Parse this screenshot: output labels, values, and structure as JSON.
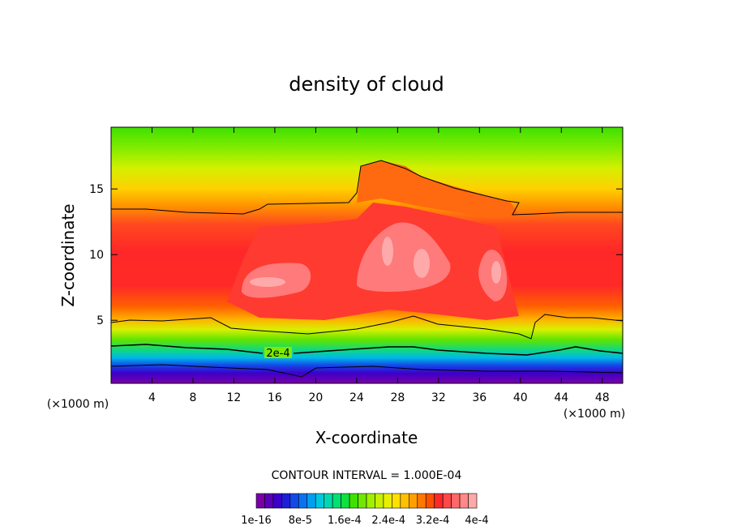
{
  "chart_data": {
    "type": "heatmap",
    "title": "density of cloud",
    "xlabel": "X-coordinate",
    "ylabel": "Z-coordinate",
    "x_unit": "(×1000 m)",
    "xlim": [
      0,
      50
    ],
    "ylim": [
      0.2,
      19.7
    ],
    "x_ticks": [
      4,
      8,
      12,
      16,
      20,
      24,
      28,
      32,
      36,
      40,
      44,
      48
    ],
    "y_ticks": [
      5,
      10,
      15
    ],
    "contour_interval_label": "CONTOUR INTERVAL = 1.000E-04",
    "contour_label": "2e-4",
    "colorbar": {
      "tick_labels": [
        "1e-16",
        "8e-5",
        "1.6e-4",
        "2.4e-4",
        "3.2e-4",
        "4e-4"
      ],
      "colors": [
        "#7a00a8",
        "#5a00b8",
        "#3c00c8",
        "#1e1ed8",
        "#1448e8",
        "#0a72f0",
        "#00a0f0",
        "#00c8e0",
        "#00d8b0",
        "#00e070",
        "#10e040",
        "#40e000",
        "#70e800",
        "#a0f000",
        "#c8f000",
        "#e8f000",
        "#ffe000",
        "#ffc000",
        "#ffa000",
        "#ff7800",
        "#ff5000",
        "#ff2828",
        "#ff4848",
        "#ff6868",
        "#ff8888",
        "#ffa8a8"
      ]
    }
  }
}
